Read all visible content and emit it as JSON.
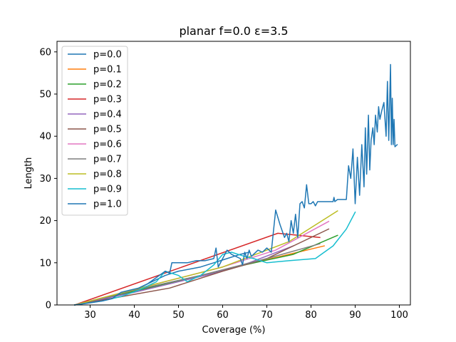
{
  "chart_data": {
    "type": "line",
    "title": "planar f=0.0 ε=3.5",
    "xlabel": "Coverage (%)",
    "ylabel": "Length",
    "xlim": [
      22.5,
      102.5
    ],
    "ylim": [
      0,
      62.5
    ],
    "xticks": [
      30,
      40,
      50,
      60,
      70,
      80,
      90,
      100
    ],
    "yticks": [
      0,
      10,
      20,
      30,
      40,
      50,
      60
    ],
    "legend_position": "top-left",
    "grid": false,
    "series": [
      {
        "name": "p=0.0",
        "color": "#1f77b4",
        "x": [
          26.5,
          32,
          35,
          38,
          41,
          44,
          47,
          50,
          55,
          58,
          61,
          64,
          66
        ],
        "y": [
          0,
          1,
          2,
          3,
          4,
          5.5,
          7,
          8,
          9,
          10,
          11,
          12,
          12.5
        ]
      },
      {
        "name": "p=0.1",
        "color": "#ff7f0e",
        "x": [
          26.5,
          35,
          45,
          55,
          65,
          75,
          83
        ],
        "y": [
          0,
          2,
          4.5,
          7,
          9.5,
          12,
          14
        ]
      },
      {
        "name": "p=0.2",
        "color": "#2ca02c",
        "x": [
          26.5,
          35,
          45,
          55,
          65,
          76,
          86
        ],
        "y": [
          0,
          2,
          4.5,
          7,
          9.5,
          12,
          16.5
        ]
      },
      {
        "name": "p=0.3",
        "color": "#d62728",
        "x": [
          26.5,
          72.5,
          82
        ],
        "y": [
          0,
          17,
          16
        ]
      },
      {
        "name": "p=0.4",
        "color": "#9467bd",
        "x": [
          26.5,
          40,
          50,
          58,
          66,
          76
        ],
        "y": [
          0,
          3,
          5.5,
          7.5,
          10,
          14
        ]
      },
      {
        "name": "p=0.5",
        "color": "#8c564b",
        "x": [
          26.5,
          48,
          60,
          70,
          84
        ],
        "y": [
          0,
          4,
          8,
          11,
          18
        ]
      },
      {
        "name": "p=0.6",
        "color": "#e377c2",
        "x": [
          26.5,
          45,
          60,
          72,
          84
        ],
        "y": [
          0,
          5,
          9,
          13,
          19.8
        ]
      },
      {
        "name": "p=0.7",
        "color": "#7f7f7f",
        "x": [
          26.5,
          40,
          55,
          70,
          82
        ],
        "y": [
          0,
          3.5,
          7,
          11,
          14.5
        ]
      },
      {
        "name": "p=0.8",
        "color": "#bcbd22",
        "x": [
          26.5,
          45,
          60,
          75,
          86
        ],
        "y": [
          0,
          5,
          9,
          15,
          22.3
        ]
      },
      {
        "name": "p=0.9",
        "color": "#17becf",
        "x": [
          26.5,
          33,
          37,
          41,
          45,
          47,
          50,
          52,
          55,
          58,
          60,
          62,
          65,
          67,
          70,
          75,
          81,
          85,
          88,
          90
        ],
        "y": [
          0,
          1,
          2,
          3.5,
          5.5,
          8,
          7,
          5.5,
          7,
          9.5,
          12,
          12.5,
          11.5,
          11,
          10,
          10.5,
          11,
          14,
          18,
          22
        ]
      },
      {
        "name": "p=1.0",
        "color": "#1f77b4",
        "x": [
          26.5,
          30,
          33,
          35,
          37,
          39,
          41,
          43,
          45,
          47,
          48,
          48.5,
          50,
          52,
          54,
          56,
          58,
          58.5,
          59,
          60,
          61,
          62,
          63,
          64,
          64.5,
          65,
          65.5,
          66,
          66.5,
          67,
          68,
          69,
          70,
          71,
          72,
          73,
          74,
          74.5,
          75,
          75.5,
          76,
          76.5,
          77,
          77.5,
          78,
          78.5,
          79,
          79.5,
          80,
          80.5,
          81,
          81.5,
          82,
          83,
          84,
          85,
          85.2,
          85.4,
          86,
          88,
          88.5,
          89,
          89.5,
          90,
          90.5,
          91,
          91.5,
          92,
          92.3,
          92.6,
          93,
          93.3,
          93.6,
          94,
          94.3,
          94.6,
          95,
          95.3,
          95.6,
          96,
          96.5,
          97,
          97.3,
          97.6,
          98,
          98.2,
          98.4,
          98.6,
          98.8,
          99,
          99.5
        ],
        "y": [
          0,
          0.5,
          1,
          1.5,
          3,
          3.5,
          4,
          5,
          6.5,
          8,
          7.5,
          10,
          10,
          10,
          10.5,
          10.5,
          11,
          13.5,
          9,
          11,
          13,
          12,
          11.5,
          11,
          9.5,
          12.5,
          11,
          13,
          11.5,
          12,
          13,
          12.5,
          13.5,
          12.5,
          22.5,
          19,
          16,
          17,
          15,
          20,
          17,
          21.5,
          16,
          24,
          24.5,
          23,
          28.5,
          24,
          24,
          24.5,
          23.5,
          24.5,
          24.5,
          24.5,
          24.5,
          24.5,
          25.5,
          24.5,
          25,
          25,
          33,
          30,
          37,
          24,
          35,
          26,
          38,
          28,
          42,
          31,
          45,
          32,
          39,
          42,
          38,
          45,
          41,
          47,
          44,
          46,
          48,
          40,
          53,
          39,
          57,
          38,
          49,
          38,
          44,
          37.5,
          38
        ]
      }
    ]
  }
}
